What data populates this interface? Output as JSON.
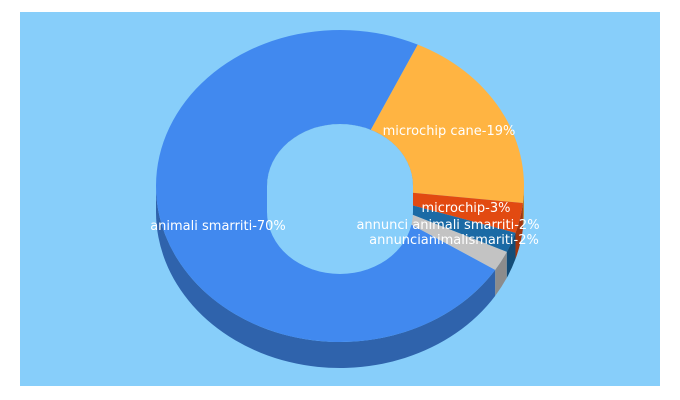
{
  "chart_data": {
    "type": "pie",
    "donut": true,
    "three_d": true,
    "background_color": "#87cefa",
    "slices": [
      {
        "label": "animali smarriti-70%",
        "value": 70,
        "color": "#4189ef"
      },
      {
        "label": "microchip cane-19%",
        "value": 19,
        "color": "#ffb442"
      },
      {
        "label": "microchip-3%",
        "value": 3,
        "color": "#e24a11"
      },
      {
        "label": "annunci animali smarriti-2%",
        "value": 2,
        "color": "#1b6aa5"
      },
      {
        "label": "annuncianimalismariti-2%",
        "value": 2,
        "color": "#c3c3c3"
      }
    ]
  }
}
